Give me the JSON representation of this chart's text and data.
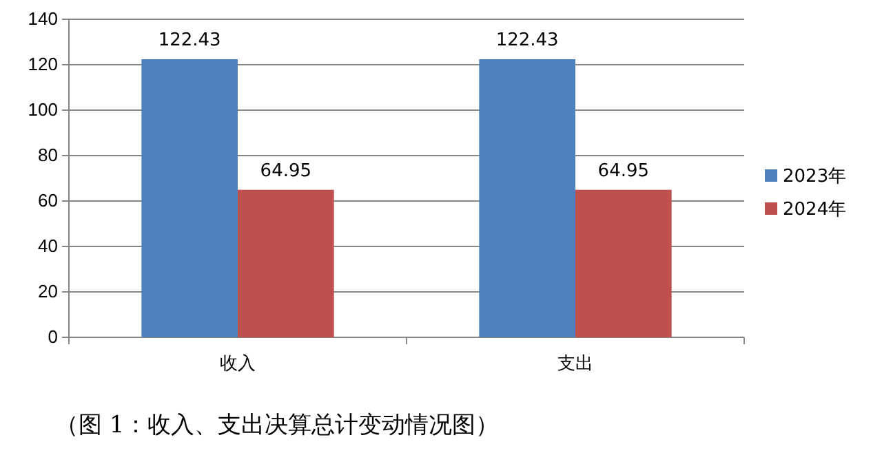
{
  "chart_data": {
    "type": "bar",
    "categories": [
      "收入",
      "支出"
    ],
    "series": [
      {
        "name": "2023年",
        "color": "#4f81bd",
        "values": [
          122.43,
          122.43
        ]
      },
      {
        "name": "2024年",
        "color": "#c0504d",
        "values": [
          64.95,
          64.95
        ]
      }
    ],
    "ylim": [
      0,
      140
    ],
    "yticks": [
      0,
      20,
      40,
      60,
      80,
      100,
      120,
      140
    ],
    "grid": "y",
    "legend": "right",
    "data_labels": true,
    "annotations": [
      "（图 1：收入、支出决算总计变动情况图）"
    ]
  }
}
